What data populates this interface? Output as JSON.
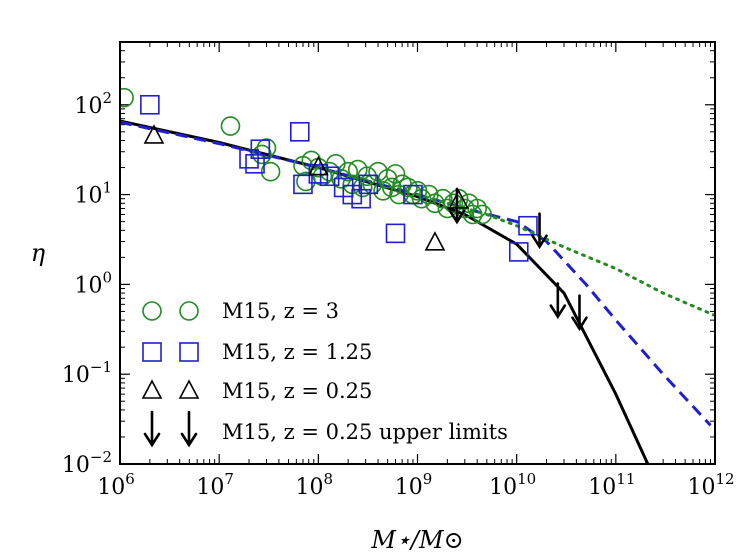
{
  "chart_data": {
    "type": "scatter",
    "xlabel": "M⋆/M⊙",
    "ylabel": "η",
    "xscale": "log",
    "yscale": "log",
    "xlim": [
      1000000.0,
      1000000000000.0
    ],
    "ylim": [
      0.01,
      500
    ],
    "x_ticks": [
      {
        "base": "10",
        "exp": "6"
      },
      {
        "base": "10",
        "exp": "7"
      },
      {
        "base": "10",
        "exp": "8"
      },
      {
        "base": "10",
        "exp": "9"
      },
      {
        "base": "10",
        "exp": "10"
      },
      {
        "base": "10",
        "exp": "11"
      },
      {
        "base": "10",
        "exp": "12"
      }
    ],
    "y_ticks": [
      {
        "base": "10",
        "exp": "−2"
      },
      {
        "base": "10",
        "exp": "−1"
      },
      {
        "base": "10",
        "exp": "0"
      },
      {
        "base": "10",
        "exp": "1"
      },
      {
        "base": "10",
        "exp": "2"
      }
    ],
    "legend_position": "lower-left",
    "legend": [
      {
        "marker": "circle",
        "color": "#228B22",
        "label": "M15, z = 3"
      },
      {
        "marker": "square",
        "color": "#1f1fd0",
        "label": "M15, z = 1.25"
      },
      {
        "marker": "triangle",
        "color": "#000000",
        "label": "M15, z = 0.25"
      },
      {
        "marker": "arrow",
        "color": "#000000",
        "label": "M15, z = 0.25 upper limits"
      }
    ],
    "series": [
      {
        "marker": "circle",
        "color": "#228B22",
        "points": [
          [
            1100000.0,
            120
          ],
          [
            13000000.0,
            58
          ],
          [
            27000000.0,
            28
          ],
          [
            30000000.0,
            33
          ],
          [
            33000000.0,
            18
          ],
          [
            70000000.0,
            21
          ],
          [
            75000000.0,
            14
          ],
          [
            85000000.0,
            24
          ],
          [
            100000000.0,
            20
          ],
          [
            110000000.0,
            16
          ],
          [
            130000000.0,
            18
          ],
          [
            150000000.0,
            22
          ],
          [
            170000000.0,
            15
          ],
          [
            200000000.0,
            18
          ],
          [
            220000000.0,
            13
          ],
          [
            250000000.0,
            19
          ],
          [
            280000000.0,
            12
          ],
          [
            310000000.0,
            16
          ],
          [
            350000000.0,
            13
          ],
          [
            400000000.0,
            18
          ],
          [
            450000000.0,
            11
          ],
          [
            500000000.0,
            15
          ],
          [
            550000000.0,
            12
          ],
          [
            600000000.0,
            17
          ],
          [
            650000000.0,
            10
          ],
          [
            700000000.0,
            13
          ],
          [
            800000000.0,
            12
          ],
          [
            900000000.0,
            10
          ],
          [
            1000000000.0,
            11
          ],
          [
            1100000000.0,
            9
          ],
          [
            1300000000.0,
            10
          ],
          [
            1500000000.0,
            8
          ],
          [
            1800000000.0,
            9
          ],
          [
            2000000000.0,
            7
          ],
          [
            2300000000.0,
            8
          ],
          [
            2600000000.0,
            9
          ],
          [
            3000000000.0,
            7
          ],
          [
            3300000000.0,
            8
          ],
          [
            3600000000.0,
            6
          ],
          [
            4000000000.0,
            7
          ],
          [
            4500000000.0,
            6
          ]
        ]
      },
      {
        "marker": "square",
        "color": "#1f1fd0",
        "points": [
          [
            2000000.0,
            100
          ],
          [
            20000000.0,
            25
          ],
          [
            23000000.0,
            22
          ],
          [
            26000000.0,
            32
          ],
          [
            65000000.0,
            50
          ],
          [
            70000000.0,
            13
          ],
          [
            100000000.0,
            17
          ],
          [
            130000000.0,
            16
          ],
          [
            180000000.0,
            12
          ],
          [
            220000000.0,
            10
          ],
          [
            270000000.0,
            9
          ],
          [
            320000000.0,
            13
          ],
          [
            600000000.0,
            3.7
          ],
          [
            900000000.0,
            10
          ],
          [
            10500000000.0,
            2.3
          ],
          [
            13000000000.0,
            4.5
          ]
        ]
      },
      {
        "marker": "triangle",
        "color": "#000000",
        "points": [
          [
            2200000.0,
            45
          ],
          [
            100000000.0,
            20
          ],
          [
            1500000000.0,
            2.9
          ],
          [
            2600000000.0,
            8.5
          ]
        ]
      },
      {
        "marker": "arrow",
        "color": "#000000",
        "points": [
          [
            2500000000.0,
            8.5
          ],
          [
            17000000000.0,
            4.5
          ],
          [
            26000000000.0,
            0.75
          ],
          [
            43000000000.0,
            0.55
          ]
        ]
      }
    ],
    "lines": [
      {
        "style": "solid",
        "color": "#000000",
        "points": [
          [
            1000000.0,
            66
          ],
          [
            10000000.0,
            38
          ],
          [
            100000000.0,
            20
          ],
          [
            1000000000.0,
            9.5
          ],
          [
            3000000000.0,
            6
          ],
          [
            10000000000.0,
            2.8
          ],
          [
            30000000000.0,
            0.8
          ],
          [
            100000000000.0,
            0.06
          ],
          [
            210000000000.0,
            0.01
          ]
        ]
      },
      {
        "style": "dashed",
        "color": "#1f1fd0",
        "points": [
          [
            1000000.0,
            64
          ],
          [
            10000000.0,
            37
          ],
          [
            100000000.0,
            20
          ],
          [
            1000000000.0,
            10
          ],
          [
            3000000000.0,
            7
          ],
          [
            10000000000.0,
            5
          ],
          [
            20000000000.0,
            3
          ],
          [
            50000000000.0,
            1
          ],
          [
            100000000000.0,
            0.4
          ],
          [
            300000000000.0,
            0.1
          ],
          [
            900000000000.0,
            0.027
          ]
        ]
      },
      {
        "style": "dotted",
        "color": "#228B22",
        "points": [
          [
            1000000000.0,
            10
          ],
          [
            2000000000.0,
            8
          ],
          [
            5000000000.0,
            6
          ],
          [
            10000000000.0,
            4.5
          ],
          [
            30000000000.0,
            2.6
          ],
          [
            100000000000.0,
            1.5
          ],
          [
            300000000000.0,
            0.8
          ],
          [
            1000000000000.0,
            0.45
          ]
        ]
      }
    ]
  }
}
